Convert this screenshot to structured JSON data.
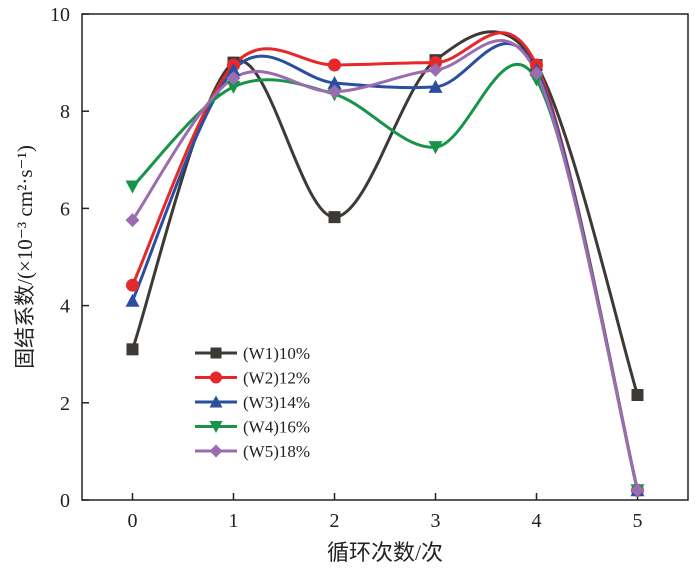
{
  "chart_data": {
    "type": "line",
    "xlabel": "循环次数/次",
    "ylabel": "固结系数/(×10⁻³ cm²·s⁻¹)",
    "x": [
      0,
      1,
      2,
      3,
      4,
      5
    ],
    "xticks": [
      "0",
      "1",
      "2",
      "3",
      "4",
      "5"
    ],
    "yticks": [
      "0",
      "2",
      "4",
      "6",
      "8",
      "10"
    ],
    "xlim": [
      -0.5,
      5.5
    ],
    "ylim": [
      0,
      10
    ],
    "grid": false,
    "legend_position": "bottom-left",
    "series": [
      {
        "name": "(W1)10%",
        "color": "#3d3935",
        "marker": "square",
        "values": [
          3.1,
          9.0,
          5.82,
          9.05,
          8.95,
          2.16
        ]
      },
      {
        "name": "(W2)12%",
        "color": "#e5282a",
        "marker": "circle",
        "values": [
          4.42,
          8.95,
          8.95,
          9.0,
          8.95,
          0.2
        ]
      },
      {
        "name": "(W3)14%",
        "color": "#2b4f9e",
        "marker": "triangle-up",
        "values": [
          4.1,
          8.85,
          8.58,
          8.5,
          8.85,
          0.2
        ]
      },
      {
        "name": "(W4)16%",
        "color": "#179448",
        "marker": "triangle-down",
        "values": [
          6.45,
          8.5,
          8.35,
          7.26,
          8.65,
          0.2
        ]
      },
      {
        "name": "(W5)18%",
        "color": "#9b6db0",
        "marker": "diamond",
        "values": [
          5.76,
          8.68,
          8.4,
          8.85,
          8.78,
          0.2
        ]
      }
    ]
  }
}
